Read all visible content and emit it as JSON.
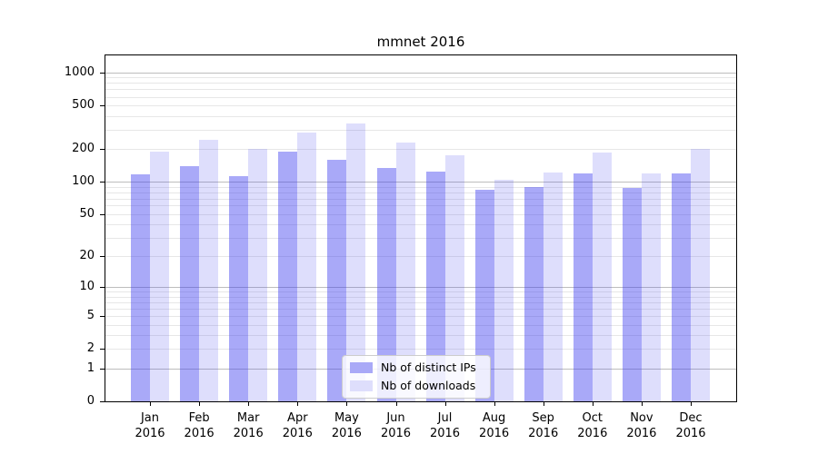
{
  "colors": {
    "bar_ips": "rgba(60,60,238,0.44)",
    "bar_downloads": "rgba(60,60,238,0.17)",
    "legend_swatch_ips": "#a9a9f7",
    "legend_swatch_downloads": "#dedefc",
    "grid_major": "#bdbdbd",
    "grid_minor": "#e7e7e7",
    "frame": "#000000"
  },
  "chart_data": {
    "type": "bar",
    "title": "mmnet 2016",
    "categories": [
      "Jan",
      "Feb",
      "Mar",
      "Apr",
      "May",
      "Jun",
      "Jul",
      "Aug",
      "Sep",
      "Oct",
      "Nov",
      "Dec"
    ],
    "category_year": "2016",
    "series": [
      {
        "name": "Nb of distinct IPs",
        "values": [
          117,
          140,
          112,
          190,
          160,
          133,
          123,
          84,
          90,
          120,
          88,
          120
        ]
      },
      {
        "name": "Nb of downloads",
        "values": [
          187,
          240,
          200,
          280,
          340,
          230,
          175,
          105,
          121,
          185,
          120,
          200
        ]
      }
    ],
    "yscale": "log1p",
    "yticks": [
      0,
      1,
      2,
      5,
      10,
      20,
      50,
      100,
      200,
      500,
      1000
    ],
    "ylim": [
      0,
      1430
    ],
    "grid": true,
    "legend_position": "lower center"
  }
}
